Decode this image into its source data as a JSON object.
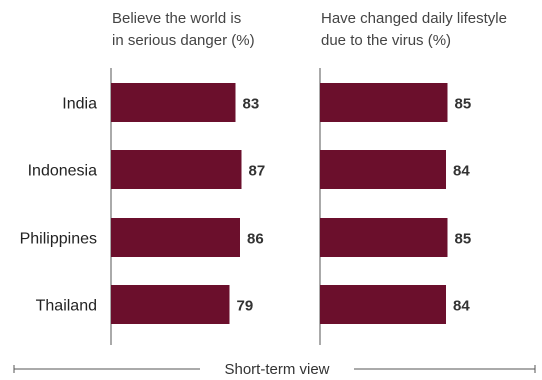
{
  "chart_data": {
    "type": "bar",
    "orientation": "horizontal",
    "categories": [
      "India",
      "Indonesia",
      "Philippines",
      "Thailand"
    ],
    "series": [
      {
        "title_lines": [
          "Believe the world is",
          "in serious danger (%)"
        ],
        "values": [
          83,
          87,
          86,
          79
        ]
      },
      {
        "title_lines": [
          "Have changed daily lifestyle",
          "due to the virus (%)"
        ],
        "values": [
          85,
          84,
          85,
          84
        ]
      }
    ],
    "bar_color": "#6b0f2c",
    "footer": "Short-term view",
    "grid": false,
    "xlim": [
      0,
      100
    ]
  }
}
